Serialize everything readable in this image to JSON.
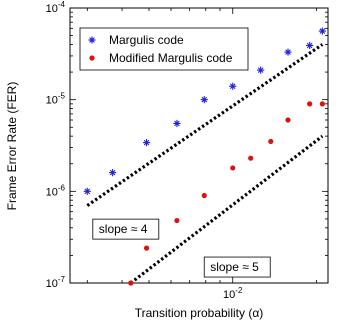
{
  "chart_data": {
    "type": "scatter",
    "xlabel": "Transition probability (α)",
    "ylabel": "Frame Error Rate (FER)",
    "x_scale": "log",
    "y_scale": "log",
    "xlim": [
      0.0026,
      0.022
    ],
    "ylim": [
      1e-07,
      0.0001
    ],
    "x_tick_labels": [
      {
        "value": 0.01,
        "base": "10",
        "exp": "-2"
      }
    ],
    "y_tick_labels": [
      {
        "value": 0.0001,
        "base": "10",
        "exp": "-4"
      },
      {
        "value": 1e-05,
        "base": "10",
        "exp": "-5"
      },
      {
        "value": 1e-06,
        "base": "10",
        "exp": "-6"
      },
      {
        "value": 1e-07,
        "base": "10",
        "exp": "-7"
      }
    ],
    "legend_position": "top-left",
    "series": [
      {
        "name": "Margulis code",
        "marker": "star",
        "color": "#1f1fe0",
        "x": [
          0.003,
          0.0037,
          0.0049,
          0.0063,
          0.0079,
          0.01,
          0.0126,
          0.0158,
          0.0189,
          0.021
        ],
        "y": [
          1e-06,
          1.6e-06,
          3.4e-06,
          5.5e-06,
          1e-05,
          1.4e-05,
          2.1e-05,
          3.3e-05,
          3.9e-05,
          5.6e-05
        ]
      },
      {
        "name": "Modified Margulis code",
        "marker": "dot",
        "color": "#e01010",
        "x": [
          0.0043,
          0.0049,
          0.0063,
          0.0079,
          0.01,
          0.0116,
          0.0137,
          0.0158,
          0.0189,
          0.021
        ],
        "y": [
          1e-07,
          2.4e-07,
          4.8e-07,
          9e-07,
          1.8e-06,
          2.3e-06,
          3.5e-06,
          6e-06,
          9e-06,
          9e-06
        ]
      }
    ],
    "fit_lines": [
      {
        "name": "slope ≈ 4 guide",
        "x": [
          0.003,
          0.021
        ],
        "y": [
          7e-07,
          4e-05
        ]
      },
      {
        "name": "slope ≈ 5 guide",
        "x": [
          0.0043,
          0.021
        ],
        "y": [
          1e-07,
          4e-06
        ]
      }
    ],
    "annotations": [
      {
        "text": "slope ≈ 4",
        "x": 0.0033,
        "y": 3.5e-07
      },
      {
        "text": "slope ≈ 5",
        "x": 0.0083,
        "y": 1.35e-07
      }
    ]
  }
}
